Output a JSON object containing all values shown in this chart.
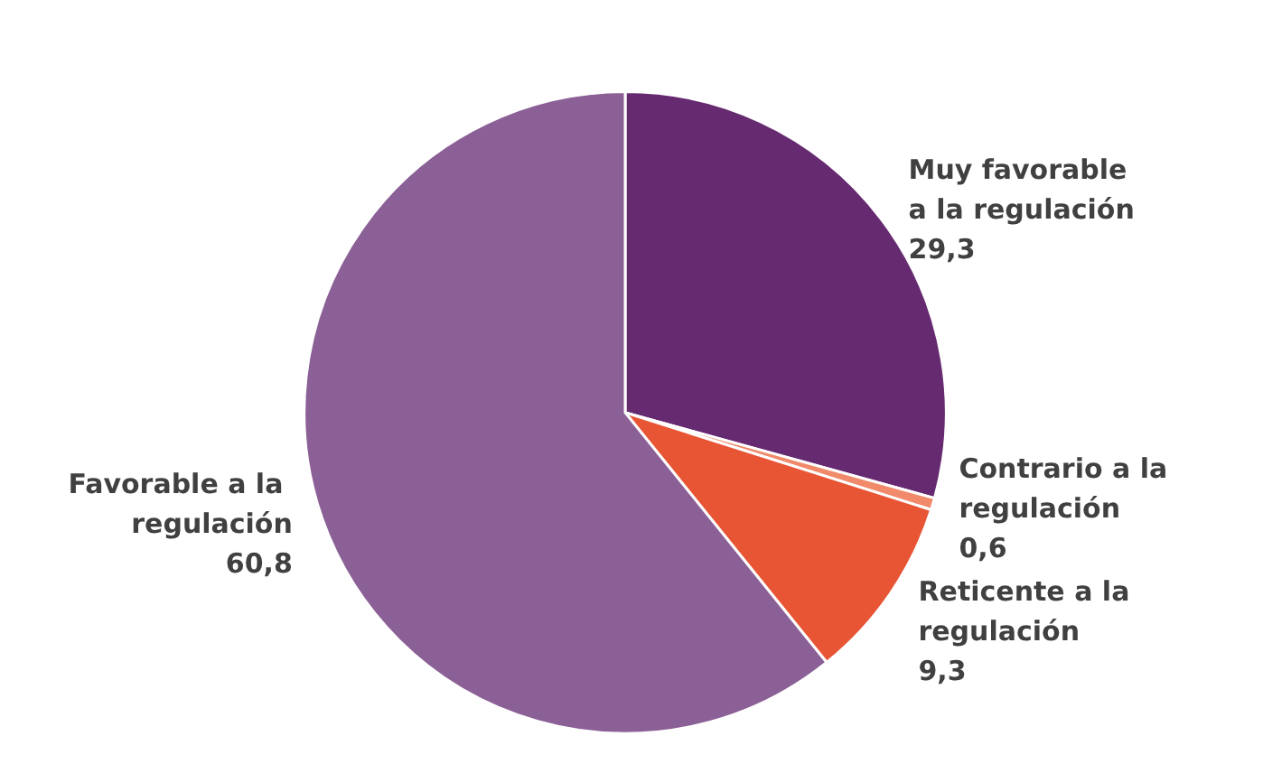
{
  "chart_data": {
    "type": "pie",
    "categories": [
      "Muy favorable a la regulación",
      "Contrario a la regulación",
      "Reticente a la regulación",
      "Favorable a la regulación"
    ],
    "values": [
      29.3,
      0.6,
      9.3,
      60.8
    ],
    "value_labels": [
      "29,3",
      "0,6",
      "9,3",
      "60,8"
    ],
    "colors": [
      "#662a70",
      "#f08a6a",
      "#e85535",
      "#8b6096"
    ],
    "legend": false
  }
}
